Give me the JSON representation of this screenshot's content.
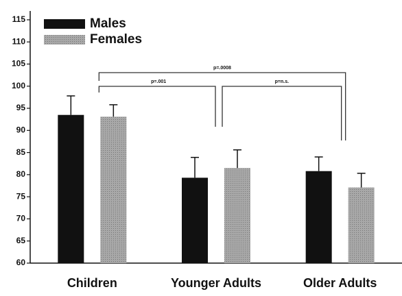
{
  "chart_data": {
    "type": "bar",
    "categories": [
      "Children",
      "Younger Adults",
      "Older Adults"
    ],
    "series": [
      {
        "name": "Males",
        "color": "#111111",
        "values": [
          93.5,
          79.3,
          80.8
        ],
        "errors": [
          4.3,
          4.6,
          3.2
        ]
      },
      {
        "name": "Females",
        "color": "#999999",
        "values": [
          93.1,
          81.5,
          77.1
        ],
        "errors": [
          2.7,
          4.1,
          3.2
        ]
      }
    ],
    "ylim": [
      60,
      117
    ],
    "yticks": [
      60,
      65,
      70,
      75,
      80,
      85,
      90,
      95,
      100,
      105,
      110,
      115
    ],
    "legend": "upper-left",
    "annotations": [
      "p=.0008",
      "p=.001",
      "p=n.s."
    ]
  }
}
